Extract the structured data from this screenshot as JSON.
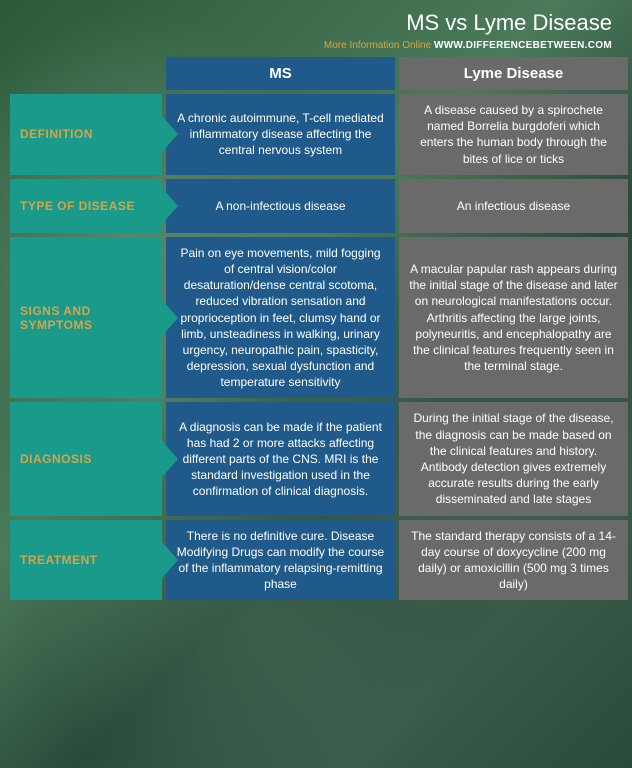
{
  "header": {
    "title": "MS vs Lyme Disease",
    "subtitle_prefix": "More Information Online ",
    "url": "WWW.DIFFERENCEBETWEEN.COM"
  },
  "columns": {
    "ms": "MS",
    "lyme": "Lyme Disease"
  },
  "rows": [
    {
      "label": "DEFINITION",
      "ms": "A chronic autoimmune, T-cell mediated inflammatory disease affecting the central nervous system",
      "lyme": "A disease caused by a spirochete named Borrelia burgdoferi which enters the human body through the bites of lice or ticks"
    },
    {
      "label": "TYPE OF DISEASE",
      "ms": "A non-infectious disease",
      "lyme": "An infectious disease"
    },
    {
      "label": "SIGNS AND SYMPTOMS",
      "ms": "Pain on eye movements, mild fogging of central vision/color desaturation/dense central scotoma, reduced vibration sensation and proprioception in feet, clumsy hand or limb, unsteadiness in walking, urinary urgency, neuropathic pain, spasticity, depression, sexual dysfunction and temperature sensitivity",
      "lyme": "A macular papular rash appears during the initial stage of the disease and later on neurological manifestations occur. Arthritis affecting the large joints, polyneuritis, and encephalopathy are the clinical features frequently seen in the terminal stage."
    },
    {
      "label": "DIAGNOSIS",
      "ms": "A diagnosis can be made if the patient has had 2 or more attacks affecting different parts of the CNS. MRI is the standard investigation used in the confirmation of clinical diagnosis.",
      "lyme": "During the initial stage of the disease, the diagnosis can be made based on the clinical features and history. Antibody detection  gives extremely accurate results during the early disseminated and late stages"
    },
    {
      "label": "TREATMENT",
      "ms": "There is no definitive cure. Disease Modifying Drugs can modify the course of the inflammatory relapsing-remitting phase",
      "lyme": "The standard therapy consists of a 14-day course of doxycycline (200 mg daily) or amoxicillin (500 mg 3 times daily)"
    }
  ],
  "colors": {
    "teal": "#1a9a8a",
    "blue": "#1f5a8a",
    "gray": "#6a6a6a",
    "gold": "#d4a548"
  }
}
